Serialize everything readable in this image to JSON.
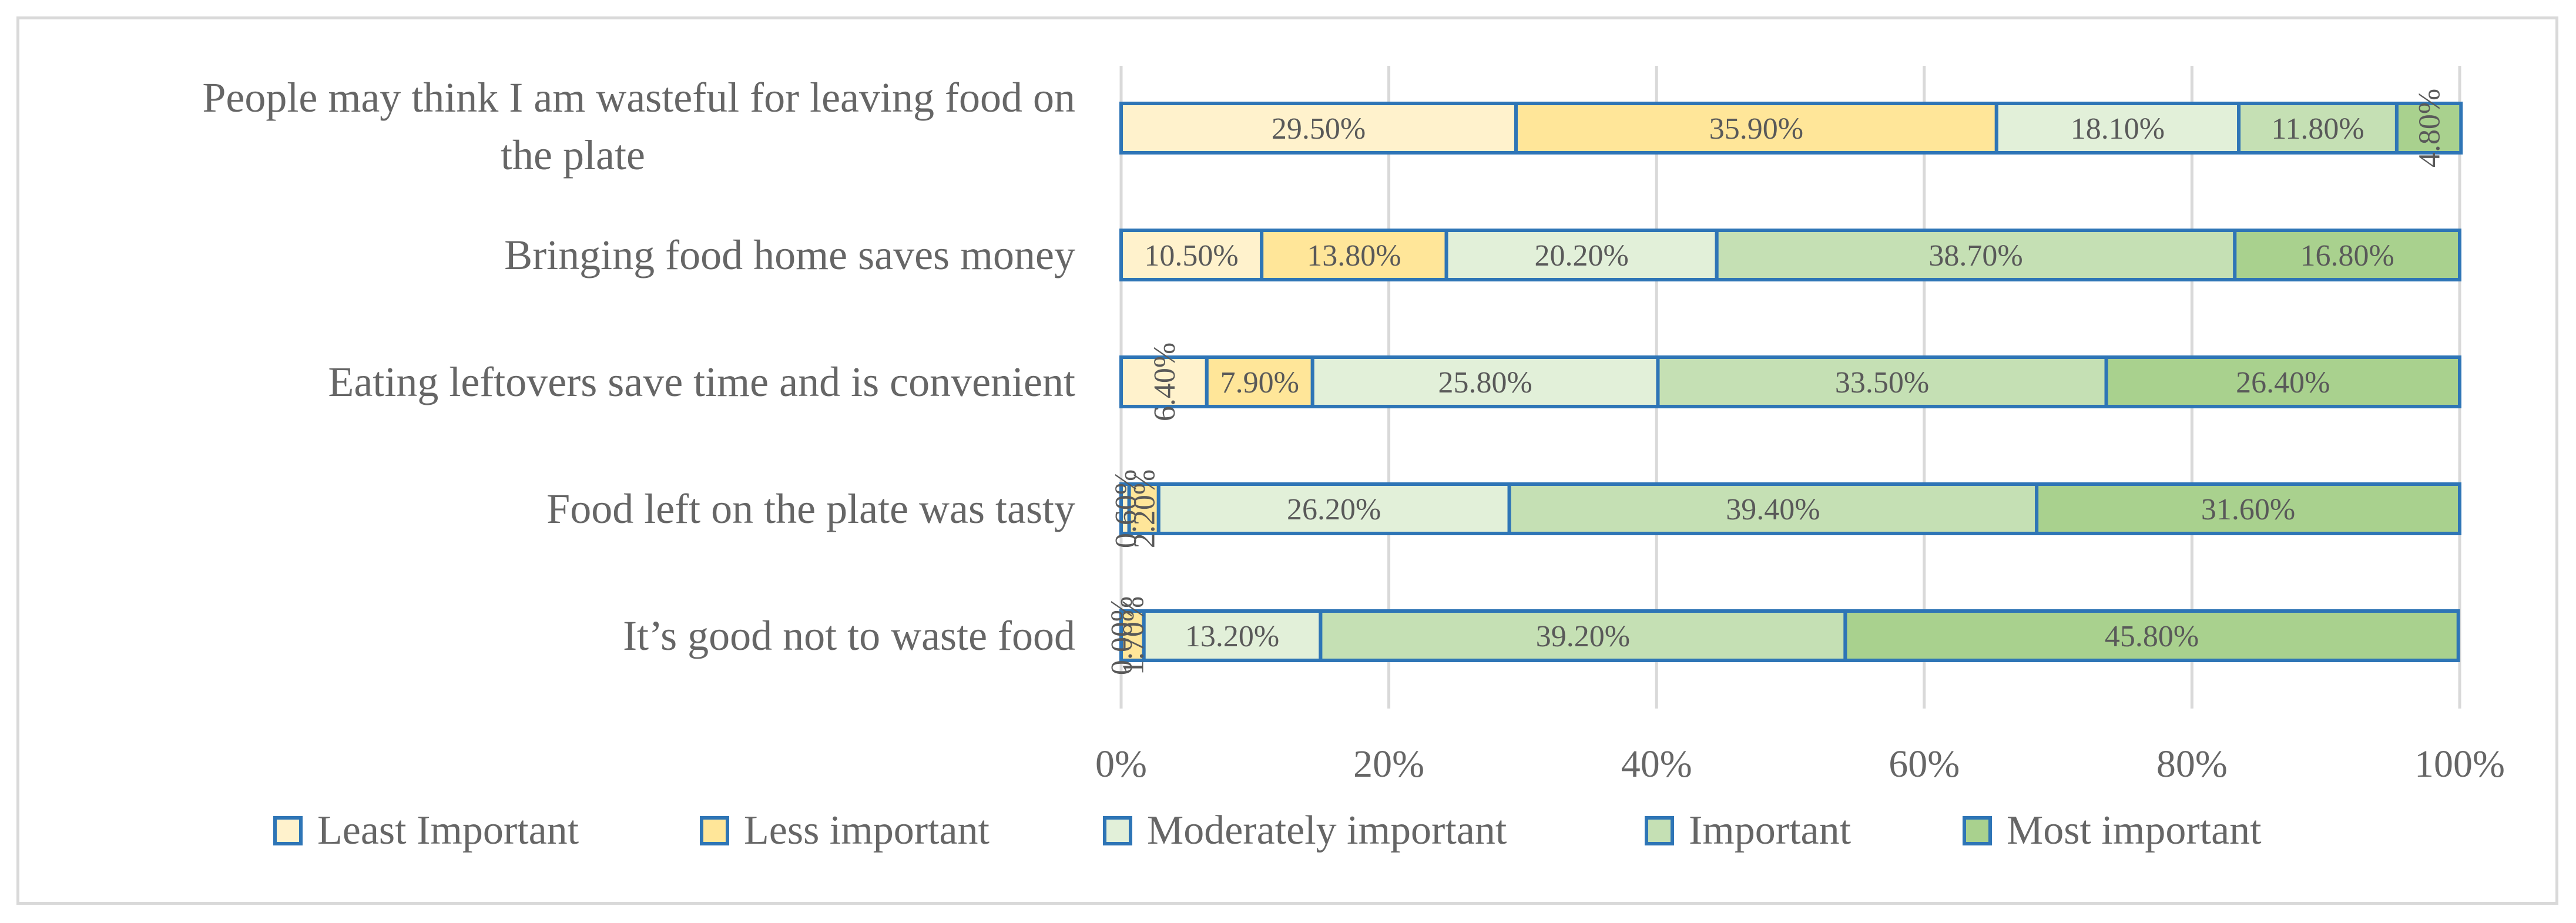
{
  "chart_data": {
    "type": "bar",
    "orientation": "horizontal",
    "stacked": "percent",
    "title": "",
    "xlabel": "",
    "ylabel": "",
    "xlim": [
      0,
      100
    ],
    "x_ticks": [
      "0%",
      "20%",
      "40%",
      "60%",
      "80%",
      "100%"
    ],
    "grid": true,
    "legend_position": "bottom",
    "categories": [
      "People may think I am wasteful for leaving food on the plate",
      "Bringing food home saves money",
      "Eating leftovers save time and is convenient",
      "Food left on the plate was tasty",
      "It’s good not to waste food"
    ],
    "series": [
      {
        "name": "Least Important",
        "color": "#fff2cc",
        "values": [
          29.5,
          10.5,
          6.4,
          0.6,
          0.0
        ],
        "labels": [
          "29.50%",
          "10.50%",
          "6.40%",
          "0.60%",
          "0.00%"
        ]
      },
      {
        "name": "Less important",
        "color": "#ffe699",
        "values": [
          35.9,
          13.8,
          7.9,
          2.2,
          1.7
        ],
        "labels": [
          "35.90%",
          "13.80%",
          "7.90%",
          "2.20%",
          "1.70%"
        ]
      },
      {
        "name": "Moderately important",
        "color": "#e2f0d9",
        "values": [
          18.1,
          20.2,
          25.8,
          26.2,
          13.2
        ],
        "labels": [
          "18.10%",
          "20.20%",
          "25.80%",
          "26.20%",
          "13.20%"
        ]
      },
      {
        "name": "Important",
        "color": "#c5e0b4",
        "values": [
          11.8,
          38.7,
          33.5,
          39.4,
          39.2
        ],
        "labels": [
          "11.80%",
          "38.70%",
          "33.50%",
          "39.40%",
          "39.20%"
        ]
      },
      {
        "name": "Most important",
        "color": "#a9d18e",
        "values": [
          4.8,
          16.8,
          26.4,
          31.6,
          45.8
        ],
        "labels": [
          "4.80%",
          "16.80%",
          "26.40%",
          "31.60%",
          "45.80%"
        ]
      }
    ],
    "bar_border_color": "#2e75b6"
  }
}
